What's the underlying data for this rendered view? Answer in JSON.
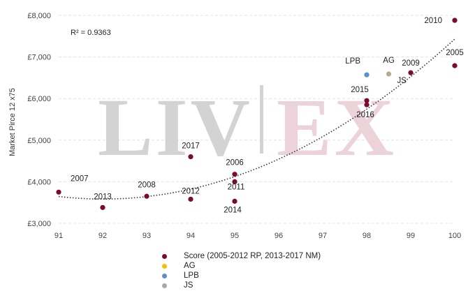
{
  "chart_data": {
    "type": "scatter",
    "title": "",
    "xlabel": "",
    "ylabel": "Market Pirce 12 x75",
    "xlim": [
      91,
      100
    ],
    "ylim": [
      3000,
      8000
    ],
    "x_ticks": [
      "91",
      "92",
      "93",
      "94",
      "95",
      "96",
      "97",
      "98",
      "99",
      "100"
    ],
    "y_ticks": [
      "£3,000",
      "£4,000",
      "£5,000",
      "£6,000",
      "£7,000",
      "£8,000"
    ],
    "y_tick_values": [
      3000,
      4000,
      5000,
      6000,
      7000,
      8000
    ],
    "grid": true,
    "legend_position": "bottom",
    "watermark": "LIV-EX",
    "annotation": "R² = 0.9363",
    "trendline": {
      "type": "polynomial",
      "style": "dotted",
      "color": "#333333"
    },
    "series": [
      {
        "name": "Score (2005-2012 RP, 2013-2017 NM)",
        "color": "#7b0a2e",
        "points": [
          {
            "x": 91,
            "y": 3750,
            "label": "2007"
          },
          {
            "x": 92,
            "y": 3380,
            "label": "2013"
          },
          {
            "x": 93,
            "y": 3650,
            "label": "2008"
          },
          {
            "x": 94,
            "y": 4600,
            "label": "2017"
          },
          {
            "x": 94,
            "y": 3580,
            "label": "2012"
          },
          {
            "x": 95,
            "y": 4180,
            "label": "2006"
          },
          {
            "x": 95,
            "y": 4000,
            "label": "2011"
          },
          {
            "x": 95,
            "y": 3530,
            "label": "2014"
          },
          {
            "x": 98,
            "y": 5950,
            "label": "2015"
          },
          {
            "x": 98,
            "y": 5850,
            "label": "2016"
          },
          {
            "x": 99,
            "y": 6620,
            "label": "2009"
          },
          {
            "x": 100,
            "y": 7880,
            "label": "2010"
          },
          {
            "x": 100,
            "y": 6790,
            "label": "2005"
          }
        ]
      },
      {
        "name": "AG",
        "color": "#f2c200",
        "points": []
      },
      {
        "name": "LPB",
        "color": "#5b8fcc",
        "points": [
          {
            "x": 98,
            "y": 6570,
            "label": "LPB"
          }
        ]
      },
      {
        "name": "JS",
        "color": "#a9a9a9",
        "points": []
      }
    ],
    "extra_points": [
      {
        "x": 98.5,
        "y": 6590,
        "label": "AG",
        "color": "#b9ab92"
      },
      {
        "x": 98.5,
        "y": 6590,
        "label": "JS",
        "color": "#b9ab92"
      }
    ]
  }
}
